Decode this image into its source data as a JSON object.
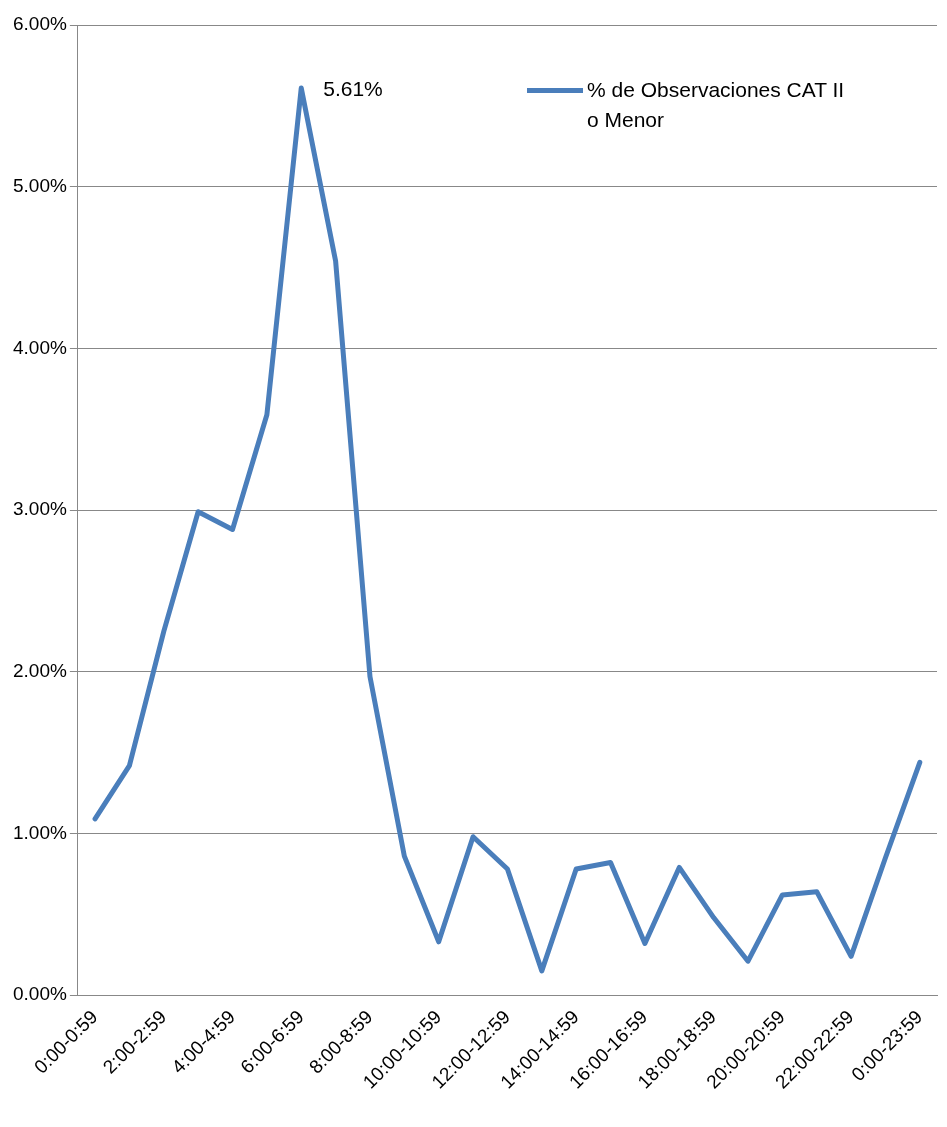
{
  "chart_data": {
    "type": "line",
    "categories": [
      "0:00-0:59",
      null,
      "2:00-2:59",
      null,
      "4:00-4:59",
      null,
      "6:00-6:59",
      null,
      "8:00-8:59",
      null,
      "10:00-10:59",
      null,
      "12:00-12:59",
      null,
      "14:00-14:59",
      null,
      "16:00-16:59",
      null,
      "18:00-18:59",
      null,
      "20:00-20:59",
      null,
      "22:00-22:59",
      null,
      "0:00-23:59"
    ],
    "series": [
      {
        "name": "% de Observaciones CAT II o Menor",
        "color": "#4a7ebb",
        "values": [
          1.09,
          1.42,
          2.25,
          2.99,
          2.88,
          3.59,
          5.61,
          4.54,
          1.97,
          0.86,
          0.33,
          0.98,
          0.78,
          0.15,
          0.78,
          0.82,
          0.32,
          0.79,
          0.48,
          0.21,
          0.62,
          0.64,
          0.24,
          0.85,
          1.44
        ]
      }
    ],
    "ylim": [
      0,
      6
    ],
    "yticks": [
      {
        "value": 0,
        "label": "0.00%"
      },
      {
        "value": 1,
        "label": "1.00%"
      },
      {
        "value": 2,
        "label": "2.00%"
      },
      {
        "value": 3,
        "label": "3.00%"
      },
      {
        "value": 4,
        "label": "4.00%"
      },
      {
        "value": 5,
        "label": "5.00%"
      },
      {
        "value": 6,
        "label": "6.00%"
      }
    ],
    "annotations": [
      {
        "text": "5.61%",
        "x": "6:00-6:59",
        "y": 5.61
      }
    ],
    "grid": "y",
    "legend": "top right",
    "marker": "none",
    "line_style": "solid"
  }
}
